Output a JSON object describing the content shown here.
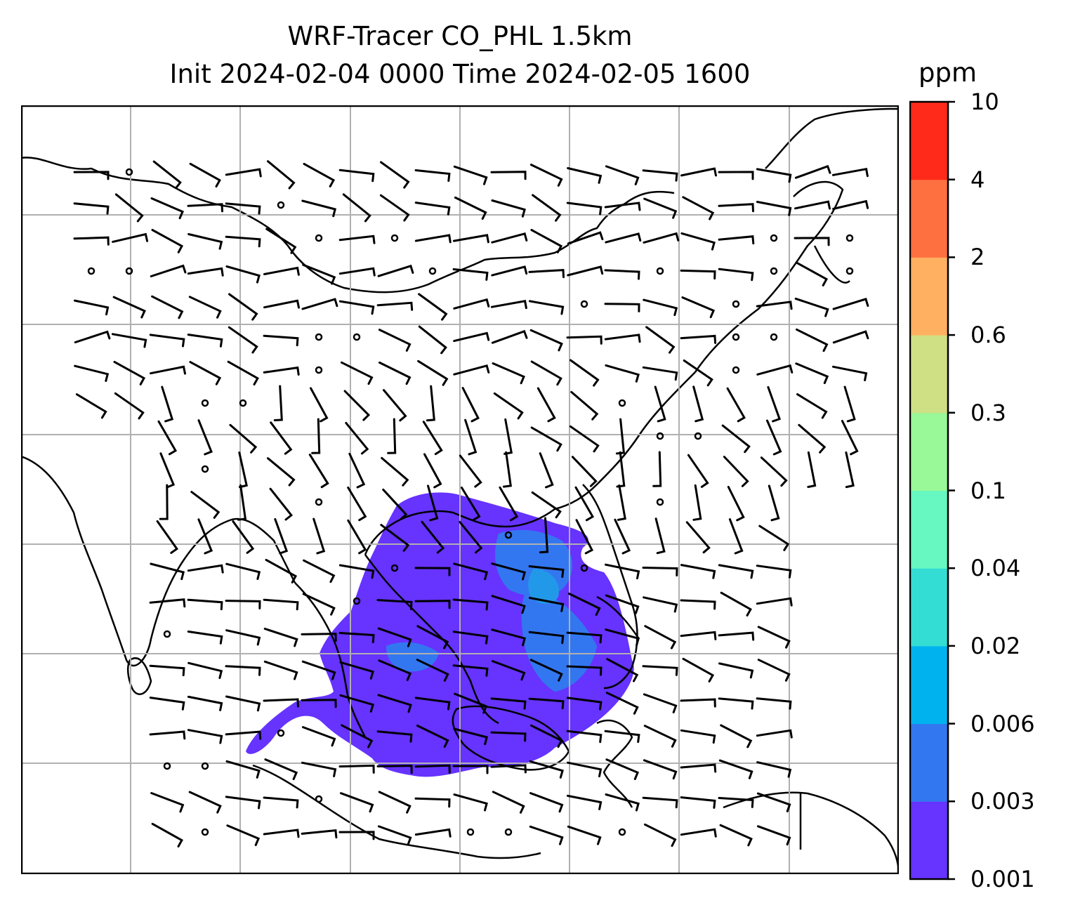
{
  "title": {
    "line1": "WRF-Tracer CO_PHL 1.5km",
    "line2": "Init 2024-02-04 0000 Time 2024-02-05 1600"
  },
  "colorbar": {
    "unit": "ppm",
    "levels": [
      "0.001",
      "0.003",
      "0.006",
      "0.02",
      "0.04",
      "0.1",
      "0.3",
      "0.6",
      "2",
      "4",
      "10"
    ],
    "colors": [
      "#6633ff",
      "#3377f0",
      "#00b3ee",
      "#33ddd4",
      "#66f8c0",
      "#99f898",
      "#cfe084",
      "#ffb060",
      "#ff7040",
      "#ff2a1a"
    ]
  },
  "map": {
    "gridlines": true,
    "grid_color": "#b0b0b0",
    "coastline_color": "#000000",
    "plume_colors": [
      "#6633ff",
      "#3377f0",
      "#2299e8"
    ]
  }
}
